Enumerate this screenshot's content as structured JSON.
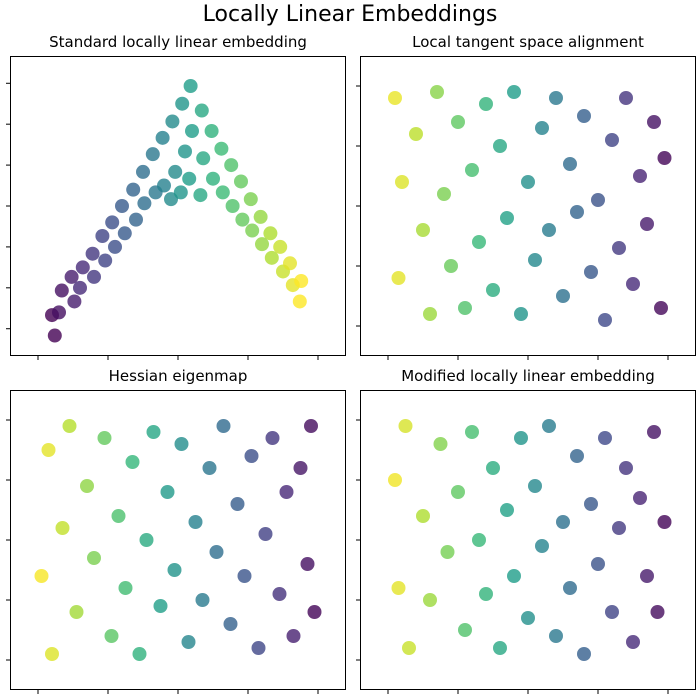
{
  "figure": {
    "title": "Locally Linear Embeddings"
  },
  "chart_data": [
    {
      "type": "scatter",
      "title": "Standard locally linear embedding",
      "xlim": [
        -1.2,
        1.2
      ],
      "ylim": [
        -1.1,
        1.1
      ],
      "xticks": [
        -1,
        -0.5,
        0,
        0.5,
        1
      ],
      "yticks": [
        -0.9,
        -0.6,
        -0.3,
        0,
        0.3,
        0.6,
        0.9
      ],
      "tick_labels": false,
      "colormap": "viridis",
      "point_format": [
        "x",
        "y",
        "color_value"
      ],
      "points": [
        [
          -0.9,
          -0.8,
          0
        ],
        [
          -0.88,
          -0.95,
          0
        ],
        [
          -0.83,
          -0.62,
          0.04
        ],
        [
          -0.85,
          -0.78,
          0.04
        ],
        [
          -0.76,
          -0.52,
          0.08
        ],
        [
          -0.74,
          -0.7,
          0.08
        ],
        [
          -0.68,
          -0.45,
          0.12
        ],
        [
          -0.7,
          -0.6,
          0.12
        ],
        [
          -0.61,
          -0.35,
          0.16
        ],
        [
          -0.6,
          -0.52,
          0.16
        ],
        [
          -0.54,
          -0.22,
          0.2
        ],
        [
          -0.52,
          -0.4,
          0.2
        ],
        [
          -0.47,
          -0.12,
          0.24
        ],
        [
          -0.45,
          -0.3,
          0.24
        ],
        [
          -0.4,
          0,
          0.28
        ],
        [
          -0.38,
          -0.2,
          0.28
        ],
        [
          -0.32,
          0.12,
          0.32
        ],
        [
          -0.3,
          -0.1,
          0.32
        ],
        [
          -0.25,
          0.25,
          0.36
        ],
        [
          -0.24,
          0.02,
          0.36
        ],
        [
          -0.18,
          0.38,
          0.4
        ],
        [
          -0.16,
          0.1,
          0.4
        ],
        [
          -0.11,
          0.5,
          0.44
        ],
        [
          -0.1,
          0.15,
          0.44
        ],
        [
          -0.04,
          0.62,
          0.48
        ],
        [
          -0.02,
          0.25,
          0.48
        ],
        [
          -0.05,
          0.05,
          0.48
        ],
        [
          0.03,
          0.75,
          0.52
        ],
        [
          0.05,
          0.4,
          0.52
        ],
        [
          0.02,
          0.1,
          0.52
        ],
        [
          0.09,
          0.88,
          0.55
        ],
        [
          0.1,
          0.55,
          0.55
        ],
        [
          0.08,
          0.2,
          0.55
        ],
        [
          0.17,
          0.7,
          0.6
        ],
        [
          0.18,
          0.35,
          0.6
        ],
        [
          0.16,
          0.08,
          0.6
        ],
        [
          0.24,
          0.55,
          0.64
        ],
        [
          0.25,
          0.2,
          0.64
        ],
        [
          0.31,
          0.42,
          0.68
        ],
        [
          0.32,
          0.1,
          0.68
        ],
        [
          0.38,
          0.3,
          0.72
        ],
        [
          0.39,
          0,
          0.72
        ],
        [
          0.45,
          0.18,
          0.76
        ],
        [
          0.46,
          -0.1,
          0.76
        ],
        [
          0.52,
          0.05,
          0.8
        ],
        [
          0.53,
          -0.18,
          0.8
        ],
        [
          0.59,
          -0.08,
          0.84
        ],
        [
          0.6,
          -0.28,
          0.84
        ],
        [
          0.66,
          -0.2,
          0.88
        ],
        [
          0.67,
          -0.38,
          0.88
        ],
        [
          0.73,
          -0.3,
          0.92
        ],
        [
          0.75,
          -0.48,
          0.92
        ],
        [
          0.8,
          -0.42,
          0.96
        ],
        [
          0.82,
          -0.58,
          0.96
        ],
        [
          0.88,
          -0.55,
          1
        ],
        [
          0.87,
          -0.7,
          1
        ]
      ]
    },
    {
      "type": "scatter",
      "title": "Local tangent space alignment",
      "xlim": [
        -2.4,
        2.4
      ],
      "ylim": [
        -1.25,
        1.25
      ],
      "xticks": [
        -2,
        -1,
        0,
        1,
        2
      ],
      "yticks": [
        -1,
        -0.5,
        0,
        0.5,
        1
      ],
      "tick_labels": false,
      "colormap": "viridis",
      "point_format": [
        "x",
        "y",
        "color_value"
      ],
      "points": [
        [
          -1.9,
          0.9,
          0.97
        ],
        [
          -1.8,
          0.2,
          0.95
        ],
        [
          -1.85,
          -0.6,
          0.96
        ],
        [
          -1.6,
          0.6,
          0.9
        ],
        [
          -1.5,
          -0.2,
          0.87
        ],
        [
          -1.4,
          -0.9,
          0.85
        ],
        [
          -1.3,
          0.95,
          0.82
        ],
        [
          -1.2,
          0.1,
          0.8
        ],
        [
          -1.1,
          -0.5,
          0.77
        ],
        [
          -1,
          0.7,
          0.75
        ],
        [
          -0.9,
          -0.85,
          0.72
        ],
        [
          -0.8,
          0.3,
          0.7
        ],
        [
          -0.7,
          -0.3,
          0.67
        ],
        [
          -0.6,
          0.85,
          0.65
        ],
        [
          -0.5,
          -0.7,
          0.62
        ],
        [
          -0.4,
          0.5,
          0.6
        ],
        [
          -0.3,
          -0.1,
          0.57
        ],
        [
          -0.2,
          0.95,
          0.55
        ],
        [
          -0.1,
          -0.9,
          0.52
        ],
        [
          0,
          0.2,
          0.5
        ],
        [
          0.1,
          -0.45,
          0.47
        ],
        [
          0.2,
          0.65,
          0.45
        ],
        [
          0.3,
          -0.2,
          0.42
        ],
        [
          0.4,
          0.9,
          0.4
        ],
        [
          0.5,
          -0.75,
          0.37
        ],
        [
          0.6,
          0.35,
          0.35
        ],
        [
          0.7,
          -0.05,
          0.32
        ],
        [
          0.8,
          0.75,
          0.3
        ],
        [
          0.9,
          -0.55,
          0.27
        ],
        [
          1,
          0.05,
          0.25
        ],
        [
          1.1,
          -0.95,
          0.22
        ],
        [
          1.2,
          0.55,
          0.2
        ],
        [
          1.3,
          -0.35,
          0.17
        ],
        [
          1.4,
          0.9,
          0.15
        ],
        [
          1.5,
          -0.65,
          0.12
        ],
        [
          1.6,
          0.25,
          0.1
        ],
        [
          1.7,
          -0.15,
          0.07
        ],
        [
          1.8,
          0.7,
          0.05
        ],
        [
          1.9,
          -0.85,
          0.02
        ],
        [
          1.95,
          0.4,
          0.01
        ]
      ]
    },
    {
      "type": "scatter",
      "title": "Hessian eigenmap",
      "xlim": [
        -2.4,
        2.4
      ],
      "ylim": [
        -1.25,
        1.25
      ],
      "xticks": [
        -2,
        -1,
        0,
        1,
        2
      ],
      "yticks": [
        -1,
        -0.5,
        0,
        0.5,
        1
      ],
      "tick_labels": false,
      "colormap": "viridis",
      "point_format": [
        "x",
        "y",
        "color_value"
      ],
      "points": [
        [
          -1.95,
          -0.3,
          0.99
        ],
        [
          -1.85,
          0.75,
          0.96
        ],
        [
          -1.8,
          -0.95,
          0.95
        ],
        [
          -1.65,
          0.1,
          0.91
        ],
        [
          -1.55,
          0.95,
          0.89
        ],
        [
          -1.45,
          -0.6,
          0.86
        ],
        [
          -1.3,
          0.45,
          0.83
        ],
        [
          -1.2,
          -0.15,
          0.8
        ],
        [
          -1.05,
          0.85,
          0.76
        ],
        [
          -0.95,
          -0.8,
          0.74
        ],
        [
          -0.85,
          0.2,
          0.71
        ],
        [
          -0.75,
          -0.4,
          0.69
        ],
        [
          -0.65,
          0.65,
          0.66
        ],
        [
          -0.55,
          -0.95,
          0.64
        ],
        [
          -0.45,
          0,
          0.61
        ],
        [
          -0.35,
          0.9,
          0.59
        ],
        [
          -0.25,
          -0.55,
          0.56
        ],
        [
          -0.15,
          0.4,
          0.54
        ],
        [
          -0.05,
          -0.25,
          0.51
        ],
        [
          0.05,
          0.8,
          0.49
        ],
        [
          0.15,
          -0.85,
          0.46
        ],
        [
          0.25,
          0.15,
          0.44
        ],
        [
          0.35,
          -0.5,
          0.41
        ],
        [
          0.45,
          0.6,
          0.39
        ],
        [
          0.55,
          -0.1,
          0.36
        ],
        [
          0.65,
          0.95,
          0.34
        ],
        [
          0.75,
          -0.7,
          0.31
        ],
        [
          0.85,
          0.3,
          0.29
        ],
        [
          0.95,
          -0.3,
          0.26
        ],
        [
          1.05,
          0.7,
          0.24
        ],
        [
          1.15,
          -0.9,
          0.21
        ],
        [
          1.25,
          0.05,
          0.19
        ],
        [
          1.35,
          0.85,
          0.16
        ],
        [
          1.45,
          -0.45,
          0.14
        ],
        [
          1.55,
          0.4,
          0.11
        ],
        [
          1.65,
          -0.8,
          0.09
        ],
        [
          1.75,
          0.6,
          0.06
        ],
        [
          1.85,
          -0.2,
          0.04
        ],
        [
          1.9,
          0.95,
          0.03
        ],
        [
          1.95,
          -0.6,
          0.01
        ]
      ]
    },
    {
      "type": "scatter",
      "title": "Modified locally linear embedding",
      "xlim": [
        -2.4,
        2.4
      ],
      "ylim": [
        -1.25,
        1.25
      ],
      "xticks": [
        -2,
        -1,
        0,
        1,
        2
      ],
      "yticks": [
        -1,
        -0.5,
        0,
        0.5,
        1
      ],
      "tick_labels": false,
      "colormap": "viridis",
      "point_format": [
        "x",
        "y",
        "color_value"
      ],
      "points": [
        [
          -1.9,
          0.5,
          0.98
        ],
        [
          -1.85,
          -0.4,
          0.96
        ],
        [
          -1.75,
          0.95,
          0.94
        ],
        [
          -1.7,
          -0.9,
          0.92
        ],
        [
          -1.5,
          0.2,
          0.88
        ],
        [
          -1.4,
          -0.5,
          0.85
        ],
        [
          -1.25,
          0.8,
          0.81
        ],
        [
          -1.15,
          -0.1,
          0.79
        ],
        [
          -1,
          0.4,
          0.75
        ],
        [
          -0.9,
          -0.75,
          0.72
        ],
        [
          -0.8,
          0.9,
          0.7
        ],
        [
          -0.7,
          0,
          0.67
        ],
        [
          -0.6,
          -0.45,
          0.65
        ],
        [
          -0.5,
          0.6,
          0.62
        ],
        [
          -0.4,
          -0.9,
          0.6
        ],
        [
          -0.3,
          0.25,
          0.57
        ],
        [
          -0.2,
          -0.3,
          0.55
        ],
        [
          -0.1,
          0.85,
          0.52
        ],
        [
          0,
          -0.65,
          0.5
        ],
        [
          0.1,
          0.45,
          0.47
        ],
        [
          0.2,
          -0.05,
          0.45
        ],
        [
          0.3,
          0.95,
          0.42
        ],
        [
          0.4,
          -0.8,
          0.4
        ],
        [
          0.5,
          0.15,
          0.37
        ],
        [
          0.6,
          -0.4,
          0.35
        ],
        [
          0.7,
          0.7,
          0.32
        ],
        [
          0.8,
          -0.95,
          0.3
        ],
        [
          0.9,
          0.3,
          0.27
        ],
        [
          1,
          -0.2,
          0.25
        ],
        [
          1.1,
          0.85,
          0.22
        ],
        [
          1.2,
          -0.6,
          0.2
        ],
        [
          1.3,
          0.1,
          0.17
        ],
        [
          1.4,
          0.6,
          0.15
        ],
        [
          1.5,
          -0.85,
          0.12
        ],
        [
          1.6,
          0.35,
          0.1
        ],
        [
          1.7,
          -0.3,
          0.07
        ],
        [
          1.8,
          0.9,
          0.05
        ],
        [
          1.85,
          -0.6,
          0.03
        ],
        [
          1.95,
          0.15,
          0.01
        ]
      ]
    }
  ]
}
